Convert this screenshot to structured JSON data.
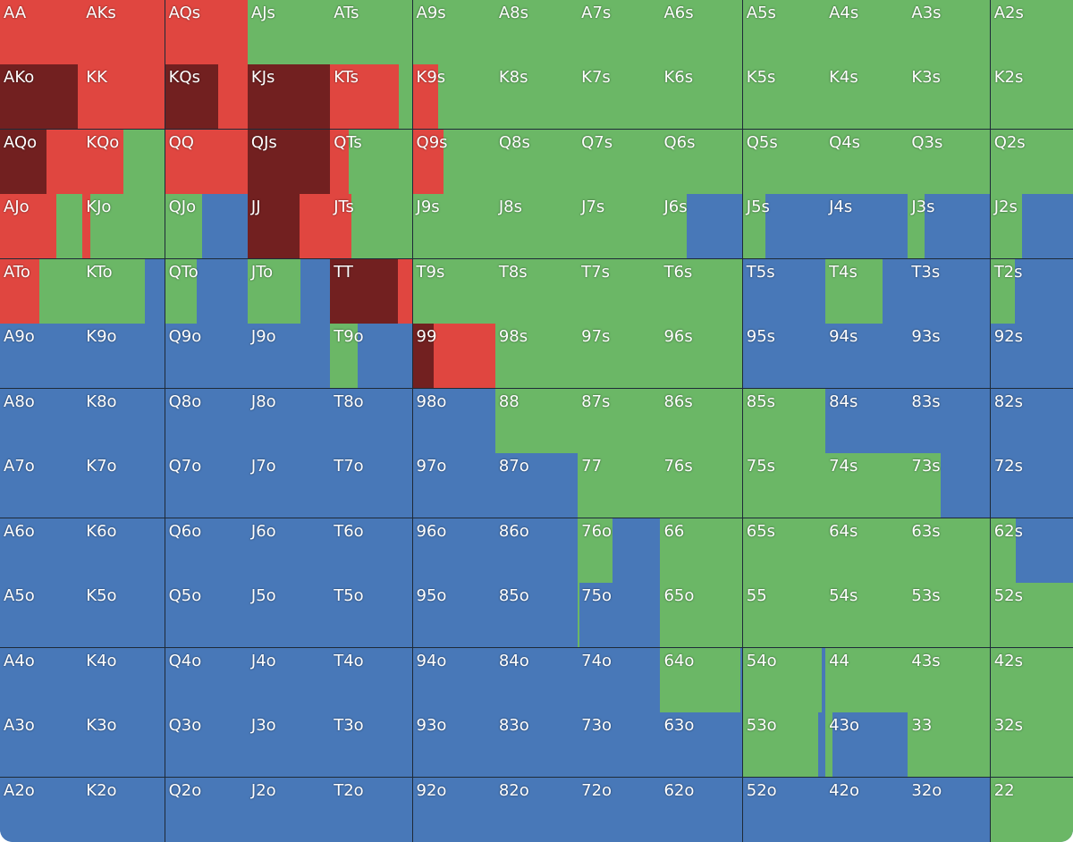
{
  "colors": [
    "#722020",
    "#e04640",
    "#6bb766",
    "#4878b8"
  ],
  "labels": [
    [
      "AA",
      "AKs",
      "AQs",
      "AJs",
      "ATs",
      "A9s",
      "A8s",
      "A7s",
      "A6s",
      "A5s",
      "A4s",
      "A3s",
      "A2s"
    ],
    [
      "AKo",
      "KK",
      "KQs",
      "KJs",
      "KTs",
      "K9s",
      "K8s",
      "K7s",
      "K6s",
      "K5s",
      "K4s",
      "K3s",
      "K2s"
    ],
    [
      "AQo",
      "KQo",
      "QQ",
      "QJs",
      "QTs",
      "Q9s",
      "Q8s",
      "Q7s",
      "Q6s",
      "Q5s",
      "Q4s",
      "Q3s",
      "Q2s"
    ],
    [
      "AJo",
      "KJo",
      "QJo",
      "JJ",
      "JTs",
      "J9s",
      "J8s",
      "J7s",
      "J6s",
      "J5s",
      "J4s",
      "J3s",
      "J2s"
    ],
    [
      "ATo",
      "KTo",
      "QTo",
      "JTo",
      "TT",
      "T9s",
      "T8s",
      "T7s",
      "T6s",
      "T5s",
      "T4s",
      "T3s",
      "T2s"
    ],
    [
      "A9o",
      "K9o",
      "Q9o",
      "J9o",
      "T9o",
      "99",
      "98s",
      "97s",
      "96s",
      "95s",
      "94s",
      "93s",
      "92s"
    ],
    [
      "A8o",
      "K8o",
      "Q8o",
      "J8o",
      "T8o",
      "98o",
      "88",
      "87s",
      "86s",
      "85s",
      "84s",
      "83s",
      "82s"
    ],
    [
      "A7o",
      "K7o",
      "Q7o",
      "J7o",
      "T7o",
      "97o",
      "87o",
      "77",
      "76s",
      "75s",
      "74s",
      "73s",
      "72s"
    ],
    [
      "A6o",
      "K6o",
      "Q6o",
      "J6o",
      "T6o",
      "96o",
      "86o",
      "76o",
      "66",
      "65s",
      "64s",
      "63s",
      "62s"
    ],
    [
      "A5o",
      "K5o",
      "Q5o",
      "J5o",
      "T5o",
      "95o",
      "85o",
      "75o",
      "65o",
      "55",
      "54s",
      "53s",
      "52s"
    ],
    [
      "A4o",
      "K4o",
      "Q4o",
      "J4o",
      "T4o",
      "94o",
      "84o",
      "74o",
      "64o",
      "54o",
      "44",
      "43s",
      "42s"
    ],
    [
      "A3o",
      "K3o",
      "Q3o",
      "J3o",
      "T3o",
      "93o",
      "83o",
      "73o",
      "63o",
      "53o",
      "43o",
      "33",
      "32s"
    ],
    [
      "A2o",
      "K2o",
      "Q2o",
      "J2o",
      "T2o",
      "92o",
      "82o",
      "72o",
      "62o",
      "52o",
      "42o",
      "32o",
      "22"
    ]
  ],
  "mix": [
    [
      [
        0,
        100,
        0,
        0
      ],
      [
        0,
        100,
        0,
        0
      ],
      [
        0,
        100,
        0,
        0
      ],
      [
        0,
        0,
        100,
        0
      ],
      [
        0,
        0,
        100,
        0
      ],
      [
        0,
        0,
        100,
        0
      ],
      [
        0,
        0,
        100,
        0
      ],
      [
        0,
        0,
        100,
        0
      ],
      [
        0,
        0,
        100,
        0
      ],
      [
        0,
        0,
        100,
        0
      ],
      [
        0,
        0,
        100,
        0
      ],
      [
        0,
        0,
        100,
        0
      ],
      [
        0,
        0,
        100,
        0
      ]
    ],
    [
      [
        95,
        5,
        0,
        0
      ],
      [
        0,
        100,
        0,
        0
      ],
      [
        65,
        35,
        0,
        0
      ],
      [
        100,
        0,
        0,
        0
      ],
      [
        0,
        83,
        17,
        0
      ],
      [
        0,
        31,
        69,
        0
      ],
      [
        0,
        0,
        100,
        0
      ],
      [
        0,
        0,
        100,
        0
      ],
      [
        0,
        0,
        100,
        0
      ],
      [
        0,
        0,
        100,
        0
      ],
      [
        0,
        0,
        100,
        0
      ],
      [
        0,
        0,
        100,
        0
      ],
      [
        0,
        0,
        100,
        0
      ]
    ],
    [
      [
        56,
        44,
        0,
        0
      ],
      [
        0,
        50,
        50,
        0
      ],
      [
        0,
        100,
        0,
        0
      ],
      [
        100,
        0,
        0,
        0
      ],
      [
        0,
        23,
        77,
        0
      ],
      [
        0,
        38,
        62,
        0
      ],
      [
        0,
        0,
        100,
        0
      ],
      [
        0,
        0,
        100,
        0
      ],
      [
        0,
        0,
        100,
        0
      ],
      [
        0,
        0,
        100,
        0
      ],
      [
        0,
        0,
        100,
        0
      ],
      [
        0,
        0,
        100,
        0
      ],
      [
        0,
        0,
        100,
        0
      ]
    ],
    [
      [
        0,
        68,
        32,
        0
      ],
      [
        0,
        9,
        91,
        0
      ],
      [
        0,
        0,
        45,
        55
      ],
      [
        63,
        37,
        0,
        0
      ],
      [
        0,
        26,
        74,
        0
      ],
      [
        0,
        0,
        100,
        0
      ],
      [
        0,
        0,
        100,
        0
      ],
      [
        0,
        0,
        100,
        0
      ],
      [
        0,
        0,
        32,
        68
      ],
      [
        0,
        0,
        27,
        73
      ],
      [
        0,
        0,
        0,
        100
      ],
      [
        0,
        0,
        20,
        80
      ],
      [
        0,
        0,
        38,
        62
      ]
    ],
    [
      [
        0,
        48,
        52,
        0
      ],
      [
        0,
        0,
        76,
        24
      ],
      [
        0,
        0,
        39,
        61
      ],
      [
        0,
        0,
        64,
        36
      ],
      [
        82,
        18,
        0,
        0
      ],
      [
        0,
        0,
        100,
        0
      ],
      [
        0,
        0,
        100,
        0
      ],
      [
        0,
        0,
        100,
        0
      ],
      [
        0,
        0,
        100,
        0
      ],
      [
        0,
        0,
        0,
        100
      ],
      [
        0,
        0,
        69,
        31
      ],
      [
        0,
        0,
        0,
        100
      ],
      [
        0,
        0,
        30,
        70
      ]
    ],
    [
      [
        0,
        0,
        0,
        100
      ],
      [
        0,
        0,
        0,
        100
      ],
      [
        0,
        0,
        0,
        100
      ],
      [
        0,
        0,
        0,
        100
      ],
      [
        0,
        0,
        34,
        66
      ],
      [
        25,
        75,
        0,
        0
      ],
      [
        0,
        0,
        100,
        0
      ],
      [
        0,
        0,
        100,
        0
      ],
      [
        0,
        0,
        100,
        0
      ],
      [
        0,
        0,
        0,
        100
      ],
      [
        0,
        0,
        0,
        100
      ],
      [
        0,
        0,
        0,
        100
      ],
      [
        0,
        0,
        0,
        100
      ]
    ],
    [
      [
        0,
        0,
        0,
        100
      ],
      [
        0,
        0,
        0,
        100
      ],
      [
        0,
        0,
        0,
        100
      ],
      [
        0,
        0,
        0,
        100
      ],
      [
        0,
        0,
        0,
        100
      ],
      [
        0,
        0,
        0,
        100
      ],
      [
        0,
        0,
        100,
        0
      ],
      [
        0,
        0,
        100,
        0
      ],
      [
        0,
        0,
        100,
        0
      ],
      [
        0,
        0,
        100,
        0
      ],
      [
        0,
        0,
        0,
        100
      ],
      [
        0,
        0,
        0,
        100
      ],
      [
        0,
        0,
        0,
        100
      ]
    ],
    [
      [
        0,
        0,
        0,
        100
      ],
      [
        0,
        0,
        0,
        100
      ],
      [
        0,
        0,
        0,
        100
      ],
      [
        0,
        0,
        0,
        100
      ],
      [
        0,
        0,
        0,
        100
      ],
      [
        0,
        0,
        0,
        100
      ],
      [
        0,
        0,
        0,
        100
      ],
      [
        0,
        0,
        100,
        0
      ],
      [
        0,
        0,
        100,
        0
      ],
      [
        0,
        0,
        100,
        0
      ],
      [
        0,
        0,
        100,
        0
      ],
      [
        0,
        0,
        40,
        60
      ],
      [
        0,
        0,
        0,
        100
      ]
    ],
    [
      [
        0,
        0,
        0,
        100
      ],
      [
        0,
        0,
        0,
        100
      ],
      [
        0,
        0,
        0,
        100
      ],
      [
        0,
        0,
        0,
        100
      ],
      [
        0,
        0,
        0,
        100
      ],
      [
        0,
        0,
        0,
        100
      ],
      [
        0,
        0,
        0,
        100
      ],
      [
        0,
        0,
        42,
        58
      ],
      [
        0,
        0,
        100,
        0
      ],
      [
        0,
        0,
        100,
        0
      ],
      [
        0,
        0,
        100,
        0
      ],
      [
        0,
        0,
        100,
        0
      ],
      [
        0,
        0,
        31,
        69
      ]
    ],
    [
      [
        0,
        0,
        0,
        100
      ],
      [
        0,
        0,
        0,
        100
      ],
      [
        0,
        0,
        0,
        100
      ],
      [
        0,
        0,
        0,
        100
      ],
      [
        0,
        0,
        0,
        100
      ],
      [
        0,
        0,
        0,
        100
      ],
      [
        0,
        0,
        0,
        100
      ],
      [
        0,
        0,
        2,
        98
      ],
      [
        0,
        0,
        100,
        0
      ],
      [
        0,
        0,
        100,
        0
      ],
      [
        0,
        0,
        100,
        0
      ],
      [
        0,
        0,
        100,
        0
      ],
      [
        0,
        0,
        100,
        0
      ]
    ],
    [
      [
        0,
        0,
        0,
        100
      ],
      [
        0,
        0,
        0,
        100
      ],
      [
        0,
        0,
        0,
        100
      ],
      [
        0,
        0,
        0,
        100
      ],
      [
        0,
        0,
        0,
        100
      ],
      [
        0,
        0,
        0,
        100
      ],
      [
        0,
        0,
        0,
        100
      ],
      [
        0,
        0,
        0,
        100
      ],
      [
        0,
        0,
        97,
        3
      ],
      [
        0,
        0,
        96,
        4
      ],
      [
        0,
        0,
        100,
        0
      ],
      [
        0,
        0,
        100,
        0
      ],
      [
        0,
        0,
        100,
        0
      ]
    ],
    [
      [
        0,
        0,
        0,
        100
      ],
      [
        0,
        0,
        0,
        100
      ],
      [
        0,
        0,
        0,
        100
      ],
      [
        0,
        0,
        0,
        100
      ],
      [
        0,
        0,
        0,
        100
      ],
      [
        0,
        0,
        0,
        100
      ],
      [
        0,
        0,
        0,
        100
      ],
      [
        0,
        0,
        0,
        100
      ],
      [
        0,
        0,
        0,
        100
      ],
      [
        0,
        0,
        92,
        8
      ],
      [
        0,
        0,
        9,
        91
      ],
      [
        0,
        0,
        100,
        0
      ],
      [
        0,
        0,
        100,
        0
      ]
    ],
    [
      [
        0,
        0,
        0,
        100
      ],
      [
        0,
        0,
        0,
        100
      ],
      [
        0,
        0,
        0,
        100
      ],
      [
        0,
        0,
        0,
        100
      ],
      [
        0,
        0,
        0,
        100
      ],
      [
        0,
        0,
        0,
        100
      ],
      [
        0,
        0,
        0,
        100
      ],
      [
        0,
        0,
        0,
        100
      ],
      [
        0,
        0,
        0,
        100
      ],
      [
        0,
        0,
        0,
        100
      ],
      [
        0,
        0,
        0,
        100
      ],
      [
        0,
        0,
        0,
        100
      ],
      [
        0,
        0,
        100,
        0
      ]
    ]
  ]
}
